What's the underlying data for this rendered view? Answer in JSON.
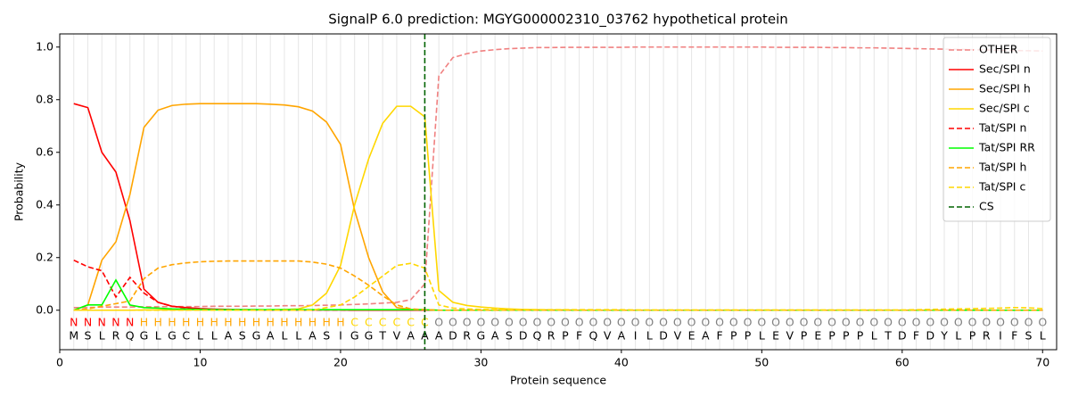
{
  "chart_data": {
    "type": "line",
    "title": "SignalP 6.0 prediction: MGYG000002310_03762 hypothetical protein",
    "x_label": "Protein sequence",
    "y_label": "Probability",
    "xlim": [
      0,
      71
    ],
    "ylim": [
      -0.15,
      1.05
    ],
    "xticks": [
      0,
      10,
      20,
      30,
      40,
      50,
      60,
      70
    ],
    "yticks": [
      {
        "value": 0,
        "label": "0.0"
      },
      {
        "value": 0.2,
        "label": "0.2"
      },
      {
        "value": 0.4,
        "label": "0.4"
      },
      {
        "value": 0.6,
        "label": "0.6"
      },
      {
        "value": 0.8,
        "label": "0.8"
      },
      {
        "value": 1,
        "label": "1.0"
      }
    ],
    "grid": true,
    "legend_position": "upper right",
    "x": [
      1,
      2,
      3,
      4,
      5,
      6,
      7,
      8,
      9,
      10,
      11,
      12,
      13,
      14,
      15,
      16,
      17,
      18,
      19,
      20,
      21,
      22,
      23,
      24,
      25,
      26,
      27,
      28,
      29,
      30,
      31,
      32,
      33,
      34,
      35,
      36,
      37,
      38,
      39,
      40,
      41,
      42,
      43,
      44,
      45,
      46,
      47,
      48,
      49,
      50,
      51,
      52,
      53,
      54,
      55,
      56,
      57,
      58,
      59,
      60,
      61,
      62,
      63,
      64,
      65,
      66,
      67,
      68,
      69,
      70
    ],
    "sequence": [
      "M",
      "S",
      "L",
      "R",
      "Q",
      "G",
      "L",
      "G",
      "C",
      "L",
      "L",
      "A",
      "S",
      "G",
      "A",
      "L",
      "L",
      "A",
      "S",
      "I",
      "G",
      "G",
      "T",
      "V",
      "A",
      "A",
      "A",
      "D",
      "R",
      "G",
      "A",
      "S",
      "D",
      "Q",
      "R",
      "P",
      "F",
      "Q",
      "V",
      "A",
      "I",
      "L",
      "D",
      "V",
      "E",
      "A",
      "F",
      "P",
      "P",
      "L",
      "E",
      "V",
      "P",
      "E",
      "P",
      "P",
      "P",
      "L",
      "T",
      "D",
      "F",
      "D",
      "Y",
      "L",
      "P",
      "R",
      "I",
      "F",
      "S",
      "L"
    ],
    "labels": [
      "N",
      "N",
      "N",
      "N",
      "N",
      "H",
      "H",
      "H",
      "H",
      "H",
      "H",
      "H",
      "H",
      "H",
      "H",
      "H",
      "H",
      "H",
      "H",
      "H",
      "C",
      "C",
      "C",
      "C",
      "C",
      "C",
      "O",
      "O",
      "O",
      "O",
      "O",
      "O",
      "O",
      "O",
      "O",
      "O",
      "O",
      "O",
      "O",
      "O",
      "O",
      "O",
      "O",
      "O",
      "O",
      "O",
      "O",
      "O",
      "O",
      "O",
      "O",
      "O",
      "O",
      "O",
      "O",
      "O",
      "O",
      "O",
      "O",
      "O",
      "O",
      "O",
      "O",
      "O",
      "O",
      "O",
      "O",
      "O",
      "O",
      "O"
    ],
    "label_colors": {
      "N": "#ff0000",
      "H": "#ffa500",
      "C": "#ffd700",
      "O": "#808080"
    },
    "series": [
      {
        "name": "OTHER",
        "color": "#f08080",
        "linestyle": "dashed",
        "values": [
          0.01,
          0.01,
          0.012,
          0.012,
          0.012,
          0.013,
          0.013,
          0.014,
          0.014,
          0.014,
          0.015,
          0.015,
          0.015,
          0.016,
          0.016,
          0.017,
          0.017,
          0.018,
          0.019,
          0.02,
          0.022,
          0.024,
          0.027,
          0.03,
          0.04,
          0.1,
          0.89,
          0.96,
          0.975,
          0.985,
          0.99,
          0.994,
          0.996,
          0.998,
          0.998,
          0.999,
          0.999,
          0.999,
          0.999,
          0.999,
          1,
          1,
          1,
          1,
          1,
          1,
          1,
          1,
          1,
          1,
          0.999,
          0.999,
          0.999,
          0.999,
          0.998,
          0.998,
          0.997,
          0.997,
          0.996,
          0.995,
          0.994,
          0.993,
          0.992,
          0.991,
          0.99,
          0.989,
          0.988,
          0.987,
          0.986,
          0.985
        ]
      },
      {
        "name": "Sec/SPI n",
        "color": "#ff0000",
        "linestyle": "solid",
        "values": [
          0.785,
          0.77,
          0.6,
          0.525,
          0.34,
          0.08,
          0.03,
          0.015,
          0.01,
          0.006,
          0.004,
          0.003,
          0.002,
          0.002,
          0.001,
          0.001,
          0.001,
          0.001,
          0.001,
          0.001,
          0,
          0,
          0,
          0,
          0,
          0,
          0,
          0,
          0,
          0,
          0,
          0,
          0,
          0,
          0,
          0,
          0,
          0,
          0,
          0,
          0,
          0,
          0,
          0,
          0,
          0,
          0,
          0,
          0,
          0,
          0,
          0,
          0,
          0,
          0,
          0,
          0,
          0,
          0,
          0,
          0,
          0,
          0,
          0,
          0,
          0,
          0,
          0,
          0,
          0
        ]
      },
      {
        "name": "Sec/SPI h",
        "color": "#ffa500",
        "linestyle": "solid",
        "values": [
          0,
          0.02,
          0.19,
          0.26,
          0.44,
          0.695,
          0.76,
          0.778,
          0.783,
          0.785,
          0.785,
          0.785,
          0.785,
          0.785,
          0.783,
          0.78,
          0.773,
          0.757,
          0.715,
          0.63,
          0.38,
          0.2,
          0.07,
          0.01,
          0.003,
          0.002,
          0,
          0,
          0,
          0,
          0,
          0,
          0,
          0,
          0,
          0,
          0,
          0,
          0,
          0,
          0,
          0,
          0,
          0,
          0,
          0,
          0,
          0,
          0,
          0,
          0,
          0,
          0,
          0,
          0,
          0,
          0,
          0,
          0,
          0,
          0,
          0,
          0,
          0,
          0,
          0,
          0,
          0,
          0,
          0
        ]
      },
      {
        "name": "Sec/SPI c",
        "color": "#ffd700",
        "linestyle": "solid",
        "values": [
          0,
          0,
          0,
          0,
          0,
          0.001,
          0.001,
          0.001,
          0.001,
          0.001,
          0.001,
          0.001,
          0.001,
          0.001,
          0.002,
          0.003,
          0.005,
          0.02,
          0.065,
          0.17,
          0.4,
          0.575,
          0.71,
          0.775,
          0.775,
          0.735,
          0.075,
          0.03,
          0.018,
          0.012,
          0.008,
          0.005,
          0.003,
          0.002,
          0.001,
          0.001,
          0,
          0,
          0,
          0,
          0,
          0,
          0,
          0,
          0,
          0,
          0,
          0,
          0,
          0,
          0,
          0,
          0,
          0,
          0,
          0,
          0,
          0,
          0,
          0,
          0,
          0,
          0,
          0,
          0,
          0,
          0,
          0,
          0,
          0
        ]
      },
      {
        "name": "Tat/SPI n",
        "color": "#ff0000",
        "linestyle": "dashed",
        "values": [
          0.19,
          0.165,
          0.15,
          0.05,
          0.125,
          0.065,
          0.03,
          0.015,
          0.008,
          0.005,
          0.003,
          0.002,
          0.002,
          0.001,
          0.001,
          0.001,
          0.001,
          0.001,
          0.001,
          0.001,
          0,
          0,
          0,
          0,
          0,
          0,
          0,
          0,
          0,
          0,
          0,
          0,
          0,
          0,
          0,
          0,
          0,
          0,
          0,
          0,
          0,
          0,
          0,
          0,
          0,
          0,
          0,
          0,
          0,
          0,
          0,
          0,
          0,
          0,
          0,
          0,
          0,
          0,
          0,
          0,
          0,
          0,
          0,
          0,
          0,
          0,
          0,
          0,
          0,
          0
        ]
      },
      {
        "name": "Tat/SPI RR",
        "color": "#00ff00",
        "linestyle": "solid",
        "values": [
          0,
          0.02,
          0.02,
          0.115,
          0.02,
          0.01,
          0.008,
          0.005,
          0.004,
          0.003,
          0.002,
          0.002,
          0.002,
          0.002,
          0.002,
          0.002,
          0.002,
          0.002,
          0.002,
          0.002,
          0.002,
          0.002,
          0.002,
          0.002,
          0.002,
          0.002,
          0,
          0,
          0,
          0,
          0,
          0,
          0,
          0,
          0,
          0,
          0,
          0,
          0,
          0,
          0,
          0,
          0,
          0,
          0,
          0,
          0,
          0,
          0,
          0,
          0,
          0,
          0,
          0,
          0,
          0,
          0,
          0,
          0,
          0,
          0,
          0,
          0,
          0,
          0,
          0,
          0,
          0,
          0,
          0
        ]
      },
      {
        "name": "Tat/SPI h",
        "color": "#ffa500",
        "linestyle": "dashed",
        "values": [
          0,
          0.005,
          0.015,
          0.025,
          0.035,
          0.12,
          0.16,
          0.173,
          0.18,
          0.184,
          0.186,
          0.187,
          0.187,
          0.187,
          0.187,
          0.187,
          0.187,
          0.183,
          0.175,
          0.16,
          0.13,
          0.095,
          0.055,
          0.02,
          0.005,
          0.002,
          0,
          0,
          0,
          0,
          0,
          0,
          0,
          0,
          0,
          0,
          0,
          0,
          0,
          0,
          0,
          0,
          0,
          0,
          0,
          0,
          0,
          0,
          0,
          0,
          0,
          0,
          0,
          0,
          0,
          0,
          0,
          0,
          0,
          0,
          0,
          0,
          0,
          0,
          0,
          0,
          0,
          0,
          0,
          0
        ]
      },
      {
        "name": "Tat/SPI c",
        "color": "#ffd700",
        "linestyle": "dashed",
        "values": [
          0,
          0,
          0,
          0,
          0,
          0,
          0,
          0,
          0,
          0,
          0,
          0,
          0,
          0,
          0,
          0,
          0,
          0,
          0.01,
          0.02,
          0.05,
          0.09,
          0.13,
          0.17,
          0.178,
          0.16,
          0.02,
          0.008,
          0.005,
          0.003,
          0.002,
          0.002,
          0.002,
          0.002,
          0.002,
          0.002,
          0.002,
          0.002,
          0.002,
          0.002,
          0.001,
          0.001,
          0.001,
          0.001,
          0.001,
          0.001,
          0.001,
          0.001,
          0.001,
          0.001,
          0.001,
          0.001,
          0.001,
          0.001,
          0.001,
          0.001,
          0.001,
          0.001,
          0.001,
          0.001,
          0.002,
          0.003,
          0.004,
          0.005,
          0.006,
          0.007,
          0.008,
          0.01,
          0.009,
          0.006
        ]
      }
    ],
    "cs_line": {
      "name": "CS",
      "x": 26,
      "color": "#006400",
      "linestyle": "dashed"
    }
  }
}
